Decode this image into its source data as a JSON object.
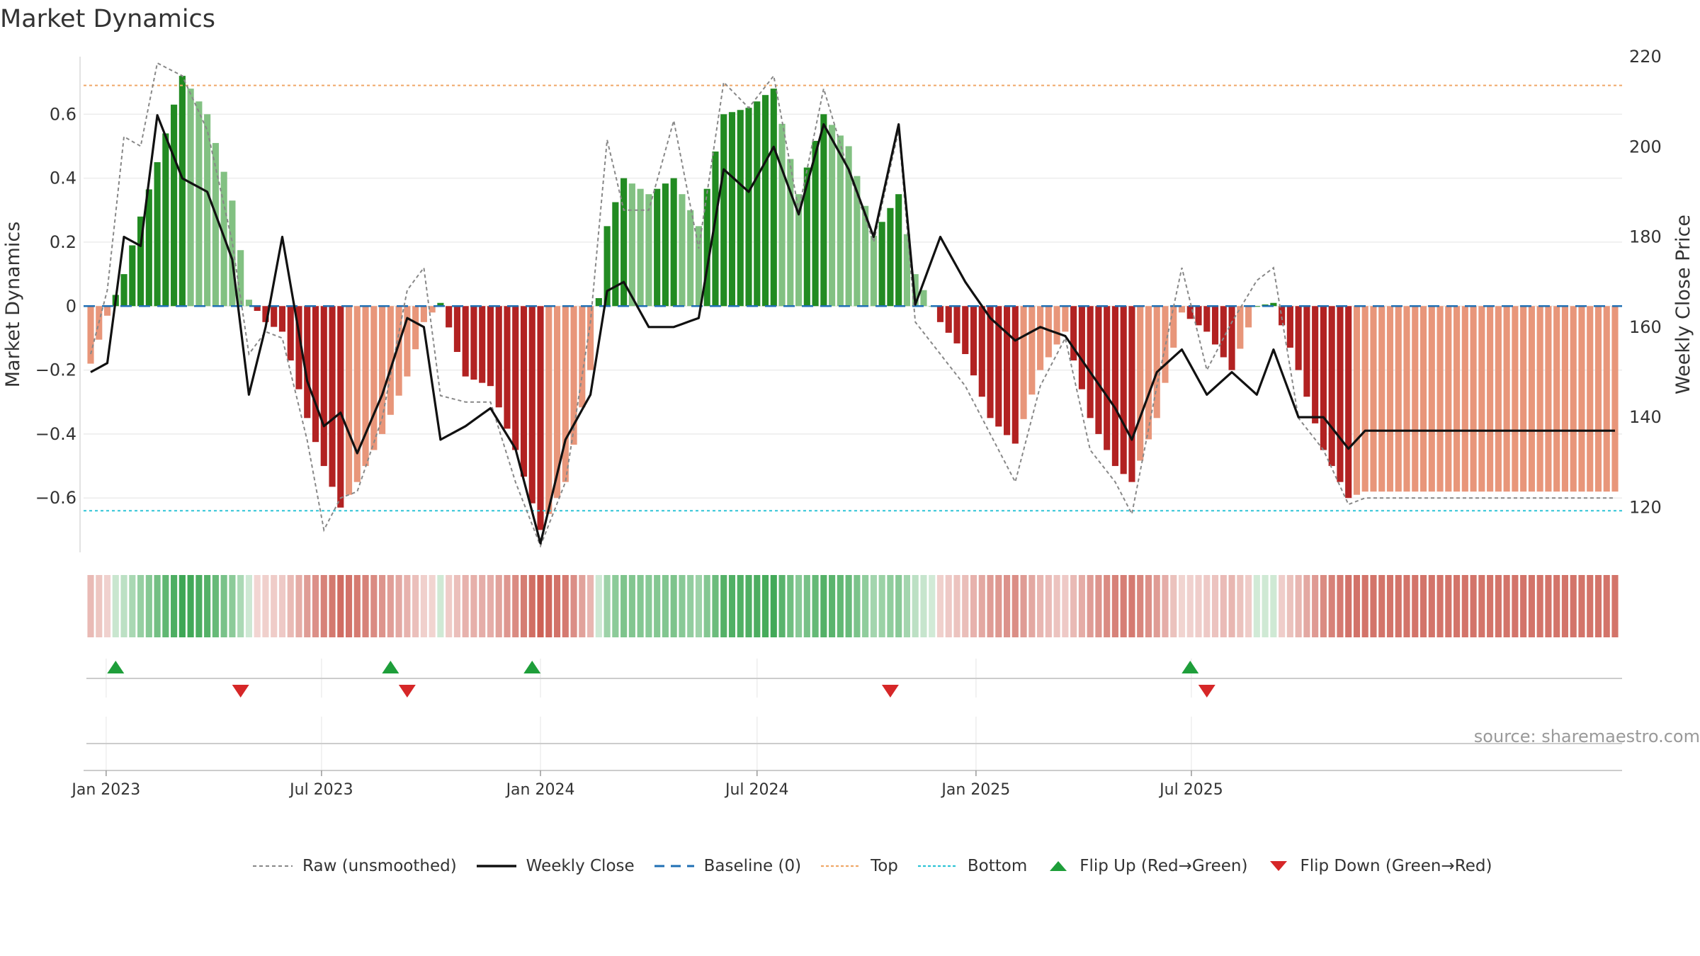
{
  "chart_data": {
    "type": "bar",
    "title": "Market Dynamics",
    "ylabel_left": "Market Dynamics",
    "ylabel_right": "Weekly Close Price",
    "source": "source: sharemaestro.com",
    "ylim_left": [
      -0.77,
      0.78
    ],
    "ylim_right": [
      110,
      220
    ],
    "yticks_left": [
      {
        "v": 0.6,
        "t": "0.6"
      },
      {
        "v": 0.4,
        "t": "0.4"
      },
      {
        "v": 0.2,
        "t": "0.2"
      },
      {
        "v": 0,
        "t": "0"
      },
      {
        "v": -0.2,
        "t": "−0.2"
      },
      {
        "v": -0.4,
        "t": "−0.4"
      },
      {
        "v": -0.6,
        "t": "−0.6"
      }
    ],
    "yticks_right": [
      {
        "v": 220,
        "t": "220"
      },
      {
        "v": 200,
        "t": "200"
      },
      {
        "v": 180,
        "t": "180"
      },
      {
        "v": 160,
        "t": "160"
      },
      {
        "v": 140,
        "t": "140"
      },
      {
        "v": 120,
        "t": "120"
      }
    ],
    "x_start": "2022-12-19",
    "week_count": 184,
    "xticks": [
      {
        "date": "2023-01-01",
        "label": "Jan 2023"
      },
      {
        "date": "2023-07-01",
        "label": "Jul 2023"
      },
      {
        "date": "2024-01-01",
        "label": "Jan 2024"
      },
      {
        "date": "2024-07-01",
        "label": "Jul 2024"
      },
      {
        "date": "2025-01-01",
        "label": "Jan 2025"
      },
      {
        "date": "2025-07-01",
        "label": "Jul 2025"
      }
    ],
    "top_level": 0.69,
    "bottom_level": -0.64,
    "baseline": 0,
    "colors": {
      "green_strong": "#228b22",
      "green_light": "#82c182",
      "red_strong": "#b22222",
      "red_light": "#e8967a",
      "close": "#111111",
      "raw": "#888888",
      "top": "#f0a868",
      "bottom": "#2ec4d6",
      "baseline": "#1f6fb4",
      "flip_up": "#1e9e3a",
      "flip_down": "#d62728"
    },
    "anchors": [
      {
        "date": "2022-12-19",
        "m": -0.18,
        "close": 150,
        "raw": -0.15
      },
      {
        "date": "2023-01-02",
        "m": -0.03,
        "close": 152,
        "raw": 0.05
      },
      {
        "date": "2023-01-16",
        "m": 0.1,
        "close": 180,
        "raw": 0.53
      },
      {
        "date": "2023-01-30",
        "m": 0.28,
        "close": 178,
        "raw": 0.5
      },
      {
        "date": "2023-02-13",
        "m": 0.45,
        "close": 207,
        "raw": 0.76
      },
      {
        "date": "2023-03-06",
        "m": 0.72,
        "close": 193,
        "raw": 0.72
      },
      {
        "date": "2023-03-27",
        "m": 0.6,
        "close": 190,
        "raw": 0.55
      },
      {
        "date": "2023-04-17",
        "m": 0.33,
        "close": 175,
        "raw": 0.2
      },
      {
        "date": "2023-05-01",
        "m": 0.02,
        "close": 145,
        "raw": -0.15
      },
      {
        "date": "2023-05-15",
        "m": -0.05,
        "close": 160,
        "raw": -0.08
      },
      {
        "date": "2023-05-29",
        "m": -0.08,
        "close": 180,
        "raw": -0.1
      },
      {
        "date": "2023-06-19",
        "m": -0.35,
        "close": 148,
        "raw": -0.42
      },
      {
        "date": "2023-07-03",
        "m": -0.5,
        "close": 138,
        "raw": -0.7
      },
      {
        "date": "2023-07-17",
        "m": -0.63,
        "close": 141,
        "raw": -0.6
      },
      {
        "date": "2023-07-31",
        "m": -0.55,
        "close": 132,
        "raw": -0.58
      },
      {
        "date": "2023-08-21",
        "m": -0.4,
        "close": 145,
        "raw": -0.35
      },
      {
        "date": "2023-09-11",
        "m": -0.22,
        "close": 162,
        "raw": 0.05
      },
      {
        "date": "2023-09-25",
        "m": -0.05,
        "close": 160,
        "raw": 0.12
      },
      {
        "date": "2023-10-09",
        "m": 0.01,
        "close": 135,
        "raw": -0.28
      },
      {
        "date": "2023-10-30",
        "m": -0.22,
        "close": 138,
        "raw": -0.3
      },
      {
        "date": "2023-11-20",
        "m": -0.25,
        "close": 142,
        "raw": -0.3
      },
      {
        "date": "2023-12-11",
        "m": -0.45,
        "close": 133,
        "raw": -0.55
      },
      {
        "date": "2024-01-01",
        "m": -0.7,
        "close": 112,
        "raw": -0.75
      },
      {
        "date": "2024-01-22",
        "m": -0.55,
        "close": 135,
        "raw": -0.55
      },
      {
        "date": "2024-02-12",
        "m": -0.2,
        "close": 145,
        "raw": -0.05
      },
      {
        "date": "2024-02-26",
        "m": 0.25,
        "close": 168,
        "raw": 0.52
      },
      {
        "date": "2024-03-11",
        "m": 0.4,
        "close": 170,
        "raw": 0.3
      },
      {
        "date": "2024-04-01",
        "m": 0.35,
        "close": 160,
        "raw": 0.3
      },
      {
        "date": "2024-04-22",
        "m": 0.4,
        "close": 160,
        "raw": 0.58
      },
      {
        "date": "2024-05-13",
        "m": 0.25,
        "close": 162,
        "raw": 0.18
      },
      {
        "date": "2024-06-03",
        "m": 0.6,
        "close": 195,
        "raw": 0.7
      },
      {
        "date": "2024-06-24",
        "m": 0.62,
        "close": 190,
        "raw": 0.62
      },
      {
        "date": "2024-07-15",
        "m": 0.68,
        "close": 200,
        "raw": 0.72
      },
      {
        "date": "2024-08-05",
        "m": 0.35,
        "close": 185,
        "raw": 0.3
      },
      {
        "date": "2024-08-26",
        "m": 0.6,
        "close": 205,
        "raw": 0.68
      },
      {
        "date": "2024-09-16",
        "m": 0.5,
        "close": 195,
        "raw": 0.42
      },
      {
        "date": "2024-10-07",
        "m": 0.22,
        "close": 180,
        "raw": 0.2
      },
      {
        "date": "2024-10-28",
        "m": 0.35,
        "close": 205,
        "raw": 0.55
      },
      {
        "date": "2024-11-11",
        "m": 0.1,
        "close": 165,
        "raw": -0.05
      },
      {
        "date": "2024-12-02",
        "m": -0.05,
        "close": 180,
        "raw": -0.15
      },
      {
        "date": "2024-12-23",
        "m": -0.15,
        "close": 170,
        "raw": -0.25
      },
      {
        "date": "2025-01-13",
        "m": -0.35,
        "close": 162,
        "raw": -0.4
      },
      {
        "date": "2025-02-03",
        "m": -0.43,
        "close": 157,
        "raw": -0.55
      },
      {
        "date": "2025-02-24",
        "m": -0.2,
        "close": 160,
        "raw": -0.25
      },
      {
        "date": "2025-03-17",
        "m": -0.08,
        "close": 158,
        "raw": -0.1
      },
      {
        "date": "2025-04-07",
        "m": -0.35,
        "close": 150,
        "raw": -0.45
      },
      {
        "date": "2025-04-28",
        "m": -0.5,
        "close": 142,
        "raw": -0.55
      },
      {
        "date": "2025-05-12",
        "m": -0.55,
        "close": 135,
        "raw": -0.65
      },
      {
        "date": "2025-06-02",
        "m": -0.35,
        "close": 150,
        "raw": -0.25
      },
      {
        "date": "2025-06-23",
        "m": -0.02,
        "close": 155,
        "raw": 0.12
      },
      {
        "date": "2025-07-14",
        "m": -0.08,
        "close": 145,
        "raw": -0.2
      },
      {
        "date": "2025-08-04",
        "m": -0.2,
        "close": 150,
        "raw": -0.05
      },
      {
        "date": "2025-08-25",
        "m": 0.0,
        "close": 145,
        "raw": 0.08
      },
      {
        "date": "2025-09-08",
        "m": 0.01,
        "close": 155,
        "raw": 0.12
      },
      {
        "date": "2025-09-29",
        "m": -0.2,
        "close": 140,
        "raw": -0.35
      },
      {
        "date": "2025-10-20",
        "m": -0.45,
        "close": 140,
        "raw": -0.45
      },
      {
        "date": "2025-11-10",
        "m": -0.6,
        "close": 133,
        "raw": -0.62
      },
      {
        "date": "2025-11-24",
        "m": -0.58,
        "close": 137,
        "raw": -0.6
      }
    ],
    "flips_up": [
      "2023-01-09",
      "2023-08-28",
      "2023-12-25",
      "2025-06-30"
    ],
    "flips_down": [
      "2023-04-24",
      "2023-09-11",
      "2024-10-21",
      "2025-07-14"
    ],
    "legend": [
      {
        "label": "Raw (unsmoothed)",
        "kind": "dashed",
        "color": "#888888"
      },
      {
        "label": "Weekly Close",
        "kind": "solid",
        "color": "#111111"
      },
      {
        "label": "Baseline (0)",
        "kind": "longdash",
        "color": "#1f6fb4"
      },
      {
        "label": "Top",
        "kind": "dotted",
        "color": "#f0a868"
      },
      {
        "label": "Bottom",
        "kind": "dotted",
        "color": "#2ec4d6"
      },
      {
        "label": "Flip Up (Red→Green)",
        "kind": "tri-up",
        "color": "#1e9e3a"
      },
      {
        "label": "Flip Down (Green→Red)",
        "kind": "tri-down",
        "color": "#d62728"
      }
    ]
  }
}
